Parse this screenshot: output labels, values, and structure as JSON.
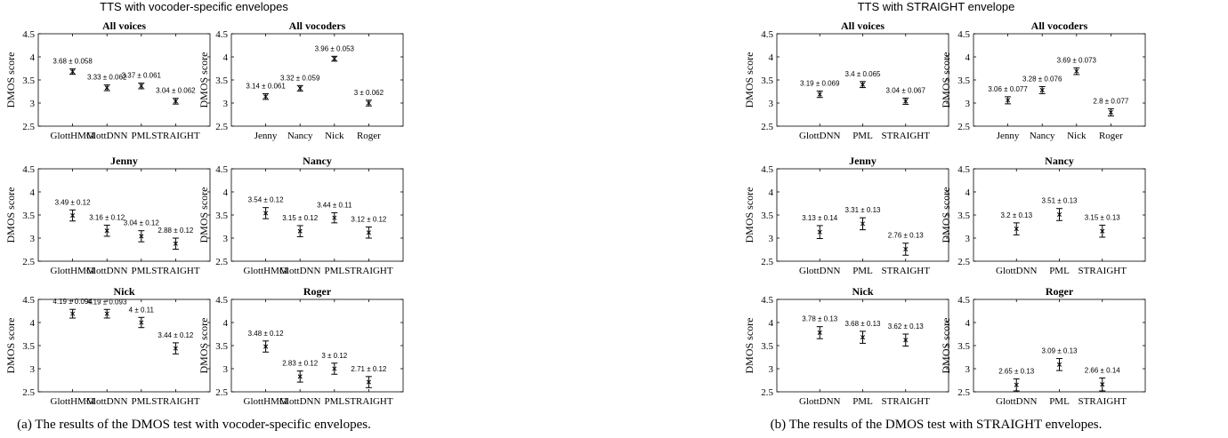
{
  "figures": [
    {
      "title": "TTS with vocoder-specific envelopes",
      "caption": "(a) The results of the DMOS test with vocoder-specific envelopes."
    },
    {
      "title": "TTS with STRAIGHT envelope",
      "caption": "(b) The results of the DMOS test with STRAIGHT envelopes."
    }
  ],
  "chart_data": [
    {
      "type": "scatter",
      "figure": "a",
      "title": "All voices",
      "ylabel": "DMOS score",
      "ylim": [
        2.5,
        4.5
      ],
      "yticks": [
        "2.5",
        "3",
        "3.5",
        "4",
        "4.5"
      ],
      "categories": [
        "GlottHMM",
        "GlottDNN",
        "PML",
        "STRAIGHT"
      ],
      "values": [
        3.68,
        3.33,
        3.37,
        3.04
      ],
      "errors": [
        0.058,
        0.062,
        0.061,
        0.062
      ],
      "labels": [
        "3.68 ± 0.058",
        "3.33 ± 0.062",
        "3.37 ± 0.061",
        "3.04 ± 0.062"
      ]
    },
    {
      "type": "scatter",
      "figure": "a",
      "title": "All vocoders",
      "ylabel": "DMOS score",
      "ylim": [
        2.5,
        4.5
      ],
      "yticks": [
        "2.5",
        "3",
        "3.5",
        "4",
        "4.5"
      ],
      "categories": [
        "Jenny",
        "Nancy",
        "Nick",
        "Roger"
      ],
      "values": [
        3.14,
        3.32,
        3.96,
        3.0
      ],
      "errors": [
        0.061,
        0.059,
        0.053,
        0.062
      ],
      "labels": [
        "3.14 ± 0.061",
        "3.32 ± 0.059",
        "3.96 ± 0.053",
        "3 ± 0.062"
      ]
    },
    {
      "type": "scatter",
      "figure": "b",
      "title": "All voices",
      "ylabel": "DMOS score",
      "ylim": [
        2.5,
        4.5
      ],
      "yticks": [
        "2.5",
        "3",
        "3.5",
        "4",
        "4.5"
      ],
      "categories": [
        "GlottDNN",
        "PML",
        "STRAIGHT"
      ],
      "values": [
        3.19,
        3.4,
        3.04
      ],
      "errors": [
        0.069,
        0.065,
        0.067
      ],
      "labels": [
        "3.19 ± 0.069",
        "3.4 ± 0.065",
        "3.04 ± 0.067"
      ]
    },
    {
      "type": "scatter",
      "figure": "b",
      "title": "All vocoders",
      "ylabel": "DMOS score",
      "ylim": [
        2.5,
        4.5
      ],
      "yticks": [
        "2.5",
        "3",
        "3.5",
        "4",
        "4.5"
      ],
      "categories": [
        "Jenny",
        "Nancy",
        "Nick",
        "Roger"
      ],
      "values": [
        3.06,
        3.28,
        3.69,
        2.8
      ],
      "errors": [
        0.077,
        0.076,
        0.073,
        0.077
      ],
      "labels": [
        "3.06 ± 0.077",
        "3.28 ± 0.076",
        "3.69 ± 0.073",
        "2.8 ± 0.077"
      ]
    },
    {
      "type": "scatter",
      "figure": "a",
      "title": "Jenny",
      "ylabel": "DMOS score",
      "ylim": [
        2.5,
        4.5
      ],
      "yticks": [
        "2.5",
        "3",
        "3.5",
        "4",
        "4.5"
      ],
      "categories": [
        "GlottHMM",
        "GlottDNN",
        "PML",
        "STRAIGHT"
      ],
      "values": [
        3.49,
        3.16,
        3.04,
        2.88
      ],
      "errors": [
        0.12,
        0.12,
        0.12,
        0.12
      ],
      "labels": [
        "3.49 ± 0.12",
        "3.16 ± 0.12",
        "3.04 ± 0.12",
        "2.88 ± 0.12"
      ]
    },
    {
      "type": "scatter",
      "figure": "a",
      "title": "Nancy",
      "ylabel": "DMOS score",
      "ylim": [
        2.5,
        4.5
      ],
      "yticks": [
        "2.5",
        "3",
        "3.5",
        "4",
        "4.5"
      ],
      "categories": [
        "GlottHMM",
        "GlottDNN",
        "PML",
        "STRAIGHT"
      ],
      "values": [
        3.54,
        3.15,
        3.44,
        3.12
      ],
      "errors": [
        0.12,
        0.12,
        0.11,
        0.12
      ],
      "labels": [
        "3.54 ± 0.12",
        "3.15 ± 0.12",
        "3.44 ± 0.11",
        "3.12 ± 0.12"
      ]
    },
    {
      "type": "scatter",
      "figure": "b",
      "title": "Jenny",
      "ylabel": "DMOS score",
      "ylim": [
        2.5,
        4.5
      ],
      "yticks": [
        "2.5",
        "3",
        "3.5",
        "4",
        "4.5"
      ],
      "categories": [
        "GlottDNN",
        "PML",
        "STRAIGHT"
      ],
      "values": [
        3.13,
        3.31,
        2.76
      ],
      "errors": [
        0.14,
        0.13,
        0.13
      ],
      "labels": [
        "3.13 ± 0.14",
        "3.31 ± 0.13",
        "2.76 ± 0.13"
      ]
    },
    {
      "type": "scatter",
      "figure": "b",
      "title": "Nancy",
      "ylabel": "DMOS score",
      "ylim": [
        2.5,
        4.5
      ],
      "yticks": [
        "2.5",
        "3",
        "3.5",
        "4",
        "4.5"
      ],
      "categories": [
        "GlottDNN",
        "PML",
        "STRAIGHT"
      ],
      "values": [
        3.2,
        3.51,
        3.15
      ],
      "errors": [
        0.13,
        0.13,
        0.13
      ],
      "labels": [
        "3.2 ± 0.13",
        "3.51 ± 0.13",
        "3.15 ± 0.13"
      ]
    },
    {
      "type": "scatter",
      "figure": "a",
      "title": "Nick",
      "ylabel": "DMOS score",
      "ylim": [
        2.5,
        4.5
      ],
      "yticks": [
        "2.5",
        "3",
        "3.5",
        "4",
        "4.5"
      ],
      "categories": [
        "GlottHMM",
        "GlottDNN",
        "PML",
        "STRAIGHT"
      ],
      "values": [
        4.19,
        4.19,
        4.0,
        3.44
      ],
      "errors": [
        0.094,
        0.093,
        0.11,
        0.12
      ],
      "labels": [
        "4.19 ± 0.094",
        "4.19 ± 0.093",
        "4 ± 0.11",
        "3.44 ± 0.12"
      ]
    },
    {
      "type": "scatter",
      "figure": "a",
      "title": "Roger",
      "ylabel": "DMOS score",
      "ylim": [
        2.5,
        4.5
      ],
      "yticks": [
        "2.5",
        "3",
        "3.5",
        "4",
        "4.5"
      ],
      "categories": [
        "GlottHMM",
        "GlottDNN",
        "PML",
        "STRAIGHT"
      ],
      "values": [
        3.48,
        2.83,
        3.0,
        2.71
      ],
      "errors": [
        0.12,
        0.12,
        0.12,
        0.12
      ],
      "labels": [
        "3.48 ± 0.12",
        "2.83 ± 0.12",
        "3 ± 0.12",
        "2.71 ± 0.12"
      ]
    },
    {
      "type": "scatter",
      "figure": "b",
      "title": "Nick",
      "ylabel": "DMOS score",
      "ylim": [
        2.5,
        4.5
      ],
      "yticks": [
        "2.5",
        "3",
        "3.5",
        "4",
        "4.5"
      ],
      "categories": [
        "GlottDNN",
        "PML",
        "STRAIGHT"
      ],
      "values": [
        3.78,
        3.68,
        3.62
      ],
      "errors": [
        0.13,
        0.13,
        0.13
      ],
      "labels": [
        "3.78 ± 0.13",
        "3.68 ± 0.13",
        "3.62 ± 0.13"
      ]
    },
    {
      "type": "scatter",
      "figure": "b",
      "title": "Roger",
      "ylabel": "DMOS score",
      "ylim": [
        2.5,
        4.5
      ],
      "yticks": [
        "2.5",
        "3",
        "3.5",
        "4",
        "4.5"
      ],
      "categories": [
        "GlottDNN",
        "PML",
        "STRAIGHT"
      ],
      "values": [
        2.65,
        3.09,
        2.66
      ],
      "errors": [
        0.13,
        0.13,
        0.14
      ],
      "labels": [
        "2.65 ± 0.13",
        "3.09 ± 0.13",
        "2.66 ± 0.14"
      ]
    }
  ]
}
